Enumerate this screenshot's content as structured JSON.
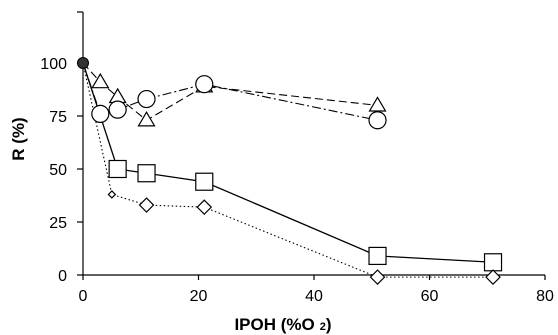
{
  "chart_data": {
    "type": "scatter",
    "title": "",
    "xlabel": "IPOH (%O",
    "xlabel_sub": "2",
    "xlabel_close": ")",
    "ylabel": "R (%)",
    "xlim": [
      0,
      80
    ],
    "ylim": [
      0,
      125
    ],
    "x_ticks": [
      0,
      20,
      40,
      60,
      80
    ],
    "y_ticks": [
      0,
      25,
      50,
      75,
      100
    ],
    "grid": false,
    "legend": "none",
    "start_point": {
      "x": 0,
      "y": 100
    },
    "series": [
      {
        "marker": "triangle",
        "line": "dashed",
        "color": "#000000",
        "points": [
          {
            "x": 0,
            "y": 100
          },
          {
            "x": 3,
            "y": 91
          },
          {
            "x": 6,
            "y": 84
          },
          {
            "x": 11,
            "y": 73
          },
          {
            "x": 21,
            "y": 89
          },
          {
            "x": 51,
            "y": 80
          }
        ]
      },
      {
        "marker": "circle",
        "line": "dashdot",
        "color": "#000000",
        "points": [
          {
            "x": 0,
            "y": 100
          },
          {
            "x": 3,
            "y": 76
          },
          {
            "x": 6,
            "y": 78
          },
          {
            "x": 11,
            "y": 83
          },
          {
            "x": 21,
            "y": 90
          },
          {
            "x": 51,
            "y": 73
          }
        ]
      },
      {
        "marker": "square",
        "line": "solid",
        "color": "#000000",
        "points": [
          {
            "x": 0,
            "y": 100
          },
          {
            "x": 6,
            "y": 50
          },
          {
            "x": 11,
            "y": 48
          },
          {
            "x": 21,
            "y": 44
          },
          {
            "x": 51,
            "y": 9
          },
          {
            "x": 71,
            "y": 6
          }
        ]
      },
      {
        "marker": "diamond",
        "line": "dotted",
        "color": "#000000",
        "points": [
          {
            "x": 0,
            "y": 100
          },
          {
            "x": 5,
            "y": 38
          },
          {
            "x": 11,
            "y": 33
          },
          {
            "x": 21,
            "y": 32
          },
          {
            "x": 51,
            "y": -1
          },
          {
            "x": 71,
            "y": -1
          }
        ]
      }
    ]
  }
}
